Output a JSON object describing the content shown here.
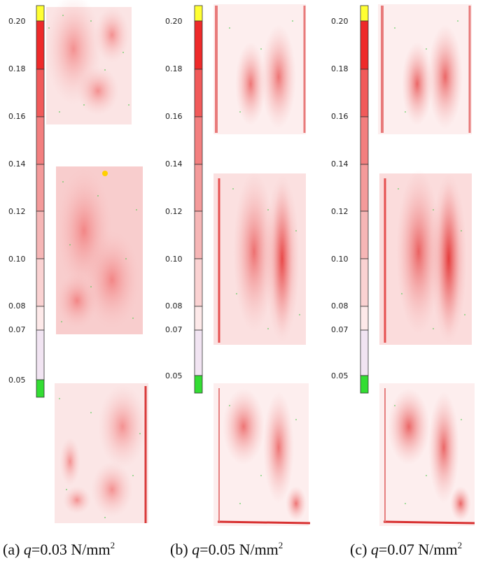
{
  "colorbar_ticks": [
    "0.20",
    "0.18",
    "0.16",
    "0.14",
    "0.12",
    "0.10",
    "0.08",
    "0.07",
    "0.05"
  ],
  "colorbar_colors": {
    "top": "#ffff33",
    "high": "#ee2a2a",
    "mid": "#f07a7a",
    "low": "#fbd6d6",
    "lowest": "#f2e6f3",
    "bottom": "#33dd33"
  },
  "panels": [
    {
      "prefix": "(a)",
      "q_symbol": "q",
      "value": "=0.03 N/mm",
      "exponent": "2"
    },
    {
      "prefix": "(b)",
      "q_symbol": "q",
      "value": "=0.05 N/mm",
      "exponent": "2"
    },
    {
      "prefix": "(c)",
      "q_symbol": "q",
      "value": "=0.07 N/mm",
      "exponent": "2"
    }
  ]
}
